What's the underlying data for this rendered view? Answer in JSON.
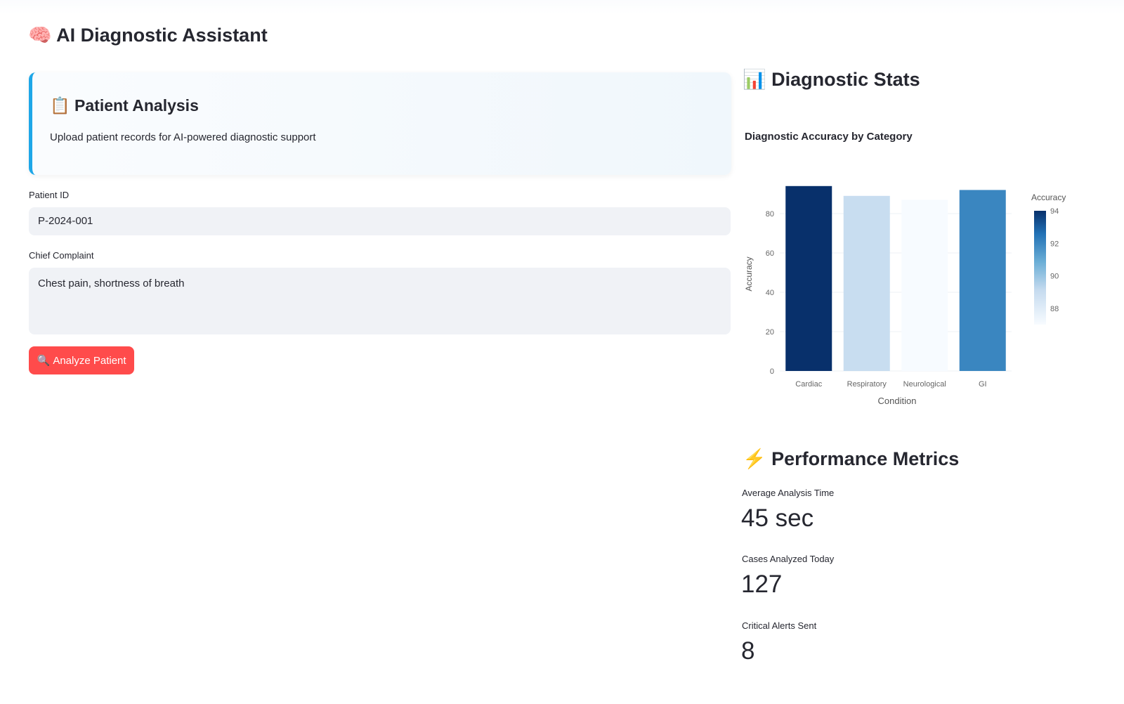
{
  "app": {
    "title_icon": "🧠",
    "title": "AI Diagnostic Assistant"
  },
  "patient_card": {
    "icon": "📋",
    "title": "Patient Analysis",
    "description": "Upload patient records for AI-powered diagnostic support"
  },
  "form": {
    "patient_id_label": "Patient ID",
    "patient_id_value": "P-2024-001",
    "complaint_label": "Chief Complaint",
    "complaint_value": "Chest pain, shortness of breath",
    "analyze_icon": "🔍",
    "analyze_label": "Analyze Patient"
  },
  "stats": {
    "icon": "📊",
    "title": "Diagnostic Stats"
  },
  "chart_data": {
    "type": "bar",
    "title": "Diagnostic Accuracy by Category",
    "categories": [
      "Cardiac",
      "Respiratory",
      "Neurological",
      "GI"
    ],
    "values": [
      94,
      89,
      87,
      92
    ],
    "xlabel": "Condition",
    "ylabel": "Accuracy",
    "ylim": [
      0,
      94
    ],
    "yticks": [
      0,
      20,
      40,
      60,
      80
    ],
    "colorbar": {
      "title": "Accuracy",
      "range": [
        87,
        94
      ],
      "ticks": [
        88,
        90,
        92,
        94
      ],
      "colorscale": "Blues"
    },
    "grid": true
  },
  "performance": {
    "icon": "⚡",
    "title": "Performance Metrics",
    "metrics": [
      {
        "label": "Average Analysis Time",
        "value": "45 sec"
      },
      {
        "label": "Cases Analyzed Today",
        "value": "127"
      },
      {
        "label": "Critical Alerts Sent",
        "value": "8"
      }
    ]
  }
}
